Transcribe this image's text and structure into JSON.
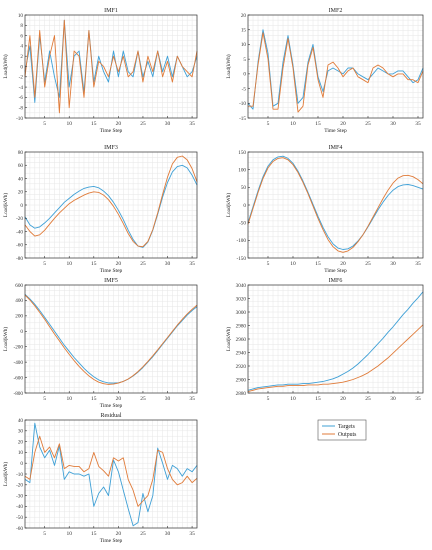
{
  "colors": {
    "targets": "#3fa0d6",
    "outputs": "#e07b39",
    "axis": "#333333",
    "grid": "#e6e6e6"
  },
  "legend": {
    "placement": "below IMF6",
    "entries": [
      "Targets",
      "Outputs"
    ]
  },
  "chart_data": [
    {
      "type": "line",
      "title": "IMF1",
      "xlabel": "Time Step",
      "ylabel": "Load(kWh)",
      "xlim": [
        1,
        36
      ],
      "ylim": [
        -10,
        10
      ],
      "grid": true,
      "xticks": [
        5,
        10,
        15,
        20,
        25,
        30,
        35
      ],
      "yticks": [
        10,
        8,
        6,
        4,
        2,
        0,
        -2,
        -4,
        -6,
        -8,
        -10
      ],
      "x": [
        1,
        2,
        3,
        4,
        5,
        6,
        7,
        8,
        9,
        10,
        11,
        12,
        13,
        14,
        15,
        16,
        17,
        18,
        19,
        20,
        21,
        22,
        23,
        24,
        25,
        26,
        27,
        28,
        29,
        30,
        31,
        32,
        33,
        34,
        35,
        36
      ],
      "series": [
        {
          "name": "Targets",
          "values": [
            -1,
            4,
            -7,
            6,
            -3,
            3,
            -2,
            -6,
            9,
            -4,
            2,
            3,
            -5,
            7,
            -3,
            2,
            -1,
            -3,
            3,
            -2,
            3,
            -1,
            -2,
            3,
            -2,
            1,
            -2,
            3,
            -1,
            2,
            -2,
            2,
            0,
            -2,
            -1,
            2
          ]
        },
        {
          "name": "Outputs",
          "values": [
            -2,
            6,
            -6,
            7,
            -4,
            2,
            6,
            -9,
            9,
            -8,
            3,
            2,
            -6,
            7,
            -4,
            1,
            0,
            -2,
            2,
            -1,
            2,
            -2,
            -1,
            3,
            -3,
            2,
            -1,
            3,
            -2,
            1,
            -3,
            2,
            0,
            -1,
            -2,
            3
          ]
        }
      ]
    },
    {
      "type": "line",
      "title": "IMF2",
      "xlabel": "Time Step",
      "ylabel": "Load(kWh)",
      "xlim": [
        1,
        36
      ],
      "ylim": [
        -15,
        20
      ],
      "grid": true,
      "xticks": [
        5,
        10,
        15,
        20,
        25,
        30,
        35
      ],
      "yticks": [
        20,
        15,
        10,
        5,
        0,
        -5,
        -10,
        -15
      ],
      "x": [
        1,
        2,
        3,
        4,
        5,
        6,
        7,
        8,
        9,
        10,
        11,
        12,
        13,
        14,
        15,
        16,
        17,
        18,
        19,
        20,
        21,
        22,
        23,
        24,
        25,
        26,
        27,
        28,
        29,
        30,
        31,
        32,
        33,
        34,
        35,
        36
      ],
      "series": [
        {
          "name": "Targets",
          "values": [
            -10,
            -12,
            4,
            15,
            7,
            -11,
            -10,
            4,
            13,
            3,
            -10,
            -8,
            4,
            10,
            -1,
            -6,
            1,
            2,
            1,
            0,
            2,
            2,
            0,
            -1,
            -2,
            0,
            2,
            1,
            0,
            0,
            1,
            1,
            -1,
            -3,
            -2,
            2
          ]
        },
        {
          "name": "Outputs",
          "values": [
            -11,
            -11,
            3,
            14,
            5,
            -12,
            -12,
            2,
            12,
            2,
            -13,
            -11,
            3,
            9,
            -2,
            -8,
            3,
            4,
            2,
            -1,
            1,
            2,
            -1,
            -2,
            -3,
            2,
            3,
            2,
            0,
            -1,
            0,
            0,
            -2,
            -2,
            -3,
            1
          ]
        }
      ]
    },
    {
      "type": "line",
      "title": "IMF3",
      "xlabel": "Time Step",
      "ylabel": "Load(kWh)",
      "xlim": [
        1,
        36
      ],
      "ylim": [
        -80,
        80
      ],
      "grid": true,
      "xticks": [
        5,
        10,
        15,
        20,
        25,
        30,
        35
      ],
      "yticks": [
        80,
        60,
        40,
        20,
        0,
        -20,
        -40,
        -60,
        -80
      ],
      "x": [
        1,
        2,
        3,
        4,
        5,
        6,
        7,
        8,
        9,
        10,
        11,
        12,
        13,
        14,
        15,
        16,
        17,
        18,
        19,
        20,
        21,
        22,
        23,
        24,
        25,
        26,
        27,
        28,
        29,
        30,
        31,
        32,
        33,
        34,
        35,
        36
      ],
      "series": [
        {
          "name": "Targets",
          "values": [
            -18,
            -30,
            -35,
            -33,
            -27,
            -20,
            -12,
            -4,
            4,
            10,
            16,
            21,
            25,
            27,
            28,
            26,
            21,
            14,
            4,
            -8,
            -22,
            -38,
            -52,
            -62,
            -64,
            -56,
            -38,
            -14,
            12,
            34,
            50,
            58,
            60,
            56,
            45,
            30
          ]
        },
        {
          "name": "Outputs",
          "values": [
            -30,
            -40,
            -47,
            -45,
            -38,
            -29,
            -20,
            -12,
            -5,
            2,
            7,
            11,
            15,
            18,
            20,
            19,
            15,
            8,
            -2,
            -14,
            -28,
            -43,
            -55,
            -62,
            -63,
            -55,
            -37,
            -12,
            16,
            42,
            62,
            72,
            74,
            68,
            55,
            35
          ]
        }
      ]
    },
    {
      "type": "line",
      "title": "IMF4",
      "xlabel": "Time Step",
      "ylabel": "Load(kWh)",
      "xlim": [
        1,
        36
      ],
      "ylim": [
        -150,
        150
      ],
      "grid": true,
      "xticks": [
        5,
        10,
        15,
        20,
        25,
        30,
        35
      ],
      "yticks": [
        150,
        100,
        50,
        0,
        -50,
        -100,
        -150
      ],
      "x": [
        1,
        2,
        3,
        4,
        5,
        6,
        7,
        8,
        9,
        10,
        11,
        12,
        13,
        14,
        15,
        16,
        17,
        18,
        19,
        20,
        21,
        22,
        23,
        24,
        25,
        26,
        27,
        28,
        29,
        30,
        31,
        32,
        33,
        34,
        35,
        36
      ],
      "series": [
        {
          "name": "Targets",
          "values": [
            -50,
            -5,
            40,
            80,
            110,
            128,
            136,
            138,
            132,
            118,
            96,
            68,
            36,
            2,
            -32,
            -63,
            -90,
            -110,
            -122,
            -126,
            -124,
            -116,
            -102,
            -84,
            -62,
            -38,
            -14,
            8,
            27,
            42,
            52,
            57,
            58,
            55,
            50,
            45
          ]
        },
        {
          "name": "Outputs",
          "values": [
            -55,
            -10,
            35,
            75,
            105,
            123,
            132,
            134,
            128,
            114,
            92,
            64,
            32,
            -3,
            -38,
            -70,
            -98,
            -118,
            -130,
            -134,
            -130,
            -120,
            -104,
            -84,
            -60,
            -34,
            -8,
            18,
            42,
            62,
            76,
            83,
            84,
            80,
            72,
            60
          ]
        }
      ]
    },
    {
      "type": "line",
      "title": "IMF5",
      "xlabel": "Time Step",
      "ylabel": "Load(kWh)",
      "xlim": [
        1,
        36
      ],
      "ylim": [
        -800,
        600
      ],
      "grid": true,
      "xticks": [
        5,
        10,
        15,
        20,
        25,
        30,
        35
      ],
      "yticks": [
        600,
        400,
        200,
        0,
        -200,
        -400,
        -600,
        -800
      ],
      "x": [
        1,
        2,
        3,
        4,
        5,
        6,
        7,
        8,
        9,
        10,
        11,
        12,
        13,
        14,
        15,
        16,
        17,
        18,
        19,
        20,
        21,
        22,
        23,
        24,
        25,
        26,
        27,
        28,
        29,
        30,
        31,
        32,
        33,
        34,
        35,
        36
      ],
      "series": [
        {
          "name": "Targets",
          "values": [
            480,
            420,
            350,
            270,
            180,
            90,
            0,
            -90,
            -180,
            -260,
            -340,
            -410,
            -480,
            -540,
            -590,
            -630,
            -655,
            -670,
            -672,
            -668,
            -650,
            -620,
            -580,
            -530,
            -470,
            -400,
            -330,
            -250,
            -170,
            -90,
            -10,
            70,
            140,
            210,
            270,
            320
          ]
        },
        {
          "name": "Outputs",
          "values": [
            470,
            405,
            330,
            245,
            155,
            60,
            -35,
            -125,
            -215,
            -300,
            -380,
            -455,
            -520,
            -578,
            -625,
            -660,
            -680,
            -688,
            -685,
            -672,
            -650,
            -618,
            -575,
            -522,
            -460,
            -390,
            -318,
            -240,
            -160,
            -80,
            0,
            80,
            155,
            225,
            285,
            340
          ]
        }
      ]
    },
    {
      "type": "line",
      "title": "IMF6",
      "xlabel": "",
      "ylabel": "Load(kWh)",
      "xlim": [
        1,
        36
      ],
      "ylim": [
        2880,
        3040
      ],
      "grid": true,
      "xticks": [
        5,
        10,
        15,
        20,
        25,
        30,
        35
      ],
      "yticks": [
        3040,
        3020,
        3000,
        2980,
        2960,
        2940,
        2920,
        2900,
        2880
      ],
      "x": [
        1,
        2,
        3,
        4,
        5,
        6,
        7,
        8,
        9,
        10,
        11,
        12,
        13,
        14,
        15,
        16,
        17,
        18,
        19,
        20,
        21,
        22,
        23,
        24,
        25,
        26,
        27,
        28,
        29,
        30,
        31,
        32,
        33,
        34,
        35,
        36
      ],
      "series": [
        {
          "name": "Targets",
          "values": [
            2884,
            2886,
            2888,
            2889,
            2890,
            2891,
            2892,
            2892,
            2893,
            2893,
            2893,
            2894,
            2894,
            2895,
            2896,
            2897,
            2899,
            2901,
            2904,
            2908,
            2912,
            2917,
            2923,
            2930,
            2937,
            2945,
            2953,
            2961,
            2970,
            2978,
            2987,
            2996,
            3004,
            3013,
            3021,
            3030
          ]
        },
        {
          "name": "Outputs",
          "values": [
            2882,
            2884,
            2886,
            2887,
            2888,
            2889,
            2890,
            2890,
            2891,
            2891,
            2891,
            2891,
            2892,
            2892,
            2892,
            2893,
            2893,
            2894,
            2895,
            2896,
            2898,
            2900,
            2903,
            2906,
            2910,
            2915,
            2920,
            2926,
            2932,
            2939,
            2946,
            2953,
            2960,
            2967,
            2974,
            2981
          ]
        }
      ]
    },
    {
      "type": "line",
      "title": "Residual",
      "xlabel": "Time Step",
      "ylabel": "Load(kWh)",
      "xlim": [
        1,
        36
      ],
      "ylim": [
        -60,
        40
      ],
      "grid": true,
      "xticks": [
        5,
        10,
        15,
        20,
        25,
        30,
        35
      ],
      "yticks": [
        40,
        30,
        20,
        10,
        0,
        -10,
        -20,
        -30,
        -40,
        -50,
        -60
      ],
      "x": [
        1,
        2,
        3,
        4,
        5,
        6,
        7,
        8,
        9,
        10,
        11,
        12,
        13,
        14,
        15,
        16,
        17,
        18,
        19,
        20,
        21,
        22,
        23,
        24,
        25,
        26,
        27,
        28,
        29,
        30,
        31,
        32,
        33,
        34,
        35,
        36
      ],
      "series": [
        {
          "name": "Targets",
          "values": [
            -15,
            -18,
            37,
            15,
            5,
            12,
            -2,
            16,
            -15,
            -8,
            -10,
            -10,
            -12,
            -10,
            -40,
            -28,
            -22,
            -30,
            3,
            -8,
            -25,
            -42,
            -58,
            -55,
            -28,
            -45,
            -30,
            14,
            0,
            -15,
            -2,
            -5,
            -12,
            -5,
            -8,
            -2
          ]
        },
        {
          "name": "Outputs",
          "values": [
            -12,
            -15,
            10,
            25,
            10,
            15,
            5,
            18,
            -5,
            -2,
            -3,
            -3,
            -8,
            -5,
            10,
            -3,
            -7,
            -12,
            5,
            2,
            5,
            -15,
            -25,
            -40,
            -35,
            -30,
            -15,
            12,
            10,
            -5,
            -15,
            -20,
            -18,
            -12,
            -18,
            -14
          ]
        }
      ]
    }
  ]
}
